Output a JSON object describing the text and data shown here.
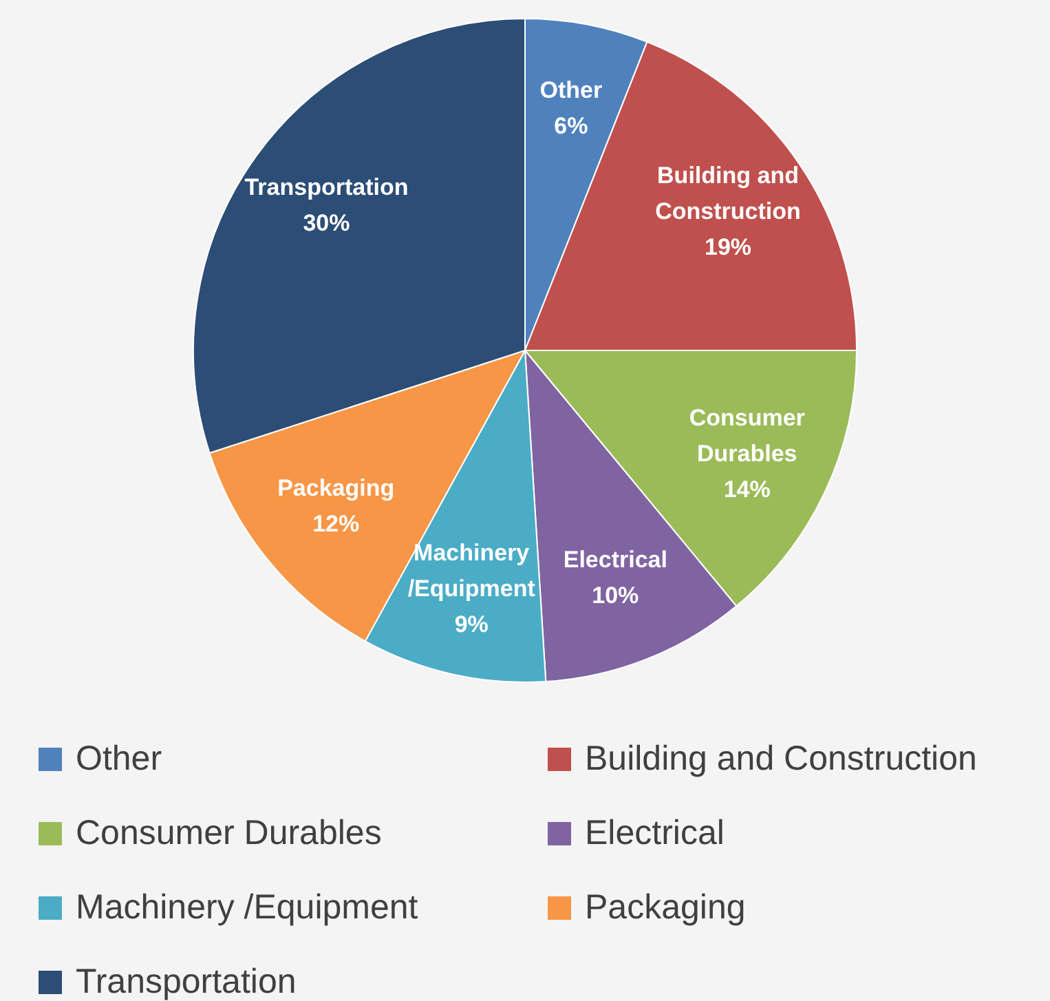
{
  "chart_data": {
    "type": "pie",
    "categories": [
      "Other",
      "Building and Construction",
      "Consumer Durables",
      "Electrical",
      "Machinery /Equipment",
      "Packaging",
      "Transportation"
    ],
    "values": [
      6,
      19,
      14,
      10,
      9,
      12,
      30
    ],
    "colors": [
      "#4f81bd",
      "#c0504d",
      "#9bbb59",
      "#8064a2",
      "#4bacc6",
      "#f79646",
      "#2c4d75"
    ],
    "value_labels": [
      "6%",
      "19%",
      "14%",
      "10%",
      "9%",
      "12%",
      "30%"
    ],
    "legend": "bottom"
  }
}
